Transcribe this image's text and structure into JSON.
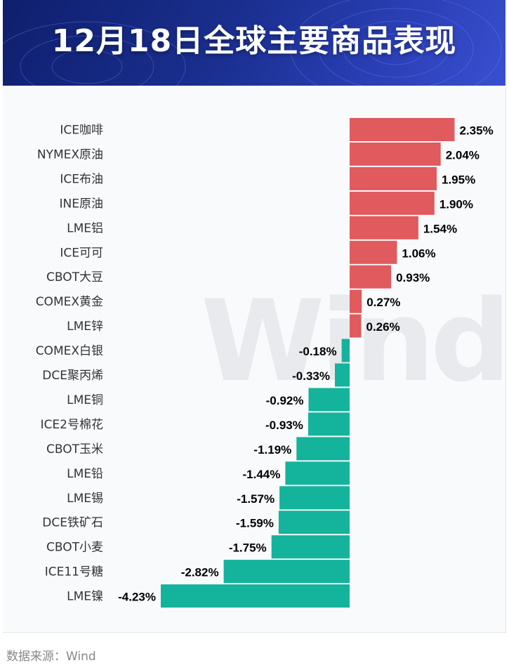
{
  "header": {
    "title": "12月18日全球主要商品表现"
  },
  "footer": {
    "source": "数据来源：Wind"
  },
  "watermark": "Wind",
  "colors": {
    "positive": "#e05a5e",
    "negative": "#14b39b",
    "banner": "#1a2f8f"
  },
  "chart_data": {
    "type": "bar",
    "orientation": "horizontal",
    "title": "12月18日全球主要商品表现",
    "unit": "%",
    "categories": [
      "ICE咖啡",
      "NYMEX原油",
      "ICE布油",
      "INE原油",
      "LME铝",
      "ICE可可",
      "CBOT大豆",
      "COMEX黄金",
      "LME锌",
      "COMEX白银",
      "DCE聚丙烯",
      "LME铜",
      "ICE2号棉花",
      "CBOT玉米",
      "LME铅",
      "LME锡",
      "DCE铁矿石",
      "CBOT小麦",
      "ICE11号糖",
      "LME镍"
    ],
    "values": [
      2.35,
      2.04,
      1.95,
      1.9,
      1.54,
      1.06,
      0.93,
      0.27,
      0.26,
      -0.18,
      -0.33,
      -0.92,
      -0.93,
      -1.19,
      -1.44,
      -1.57,
      -1.59,
      -1.75,
      -2.82,
      -4.23
    ],
    "labels": [
      "2.35%",
      "2.04%",
      "1.95%",
      "1.90%",
      "1.54%",
      "1.06%",
      "0.93%",
      "0.27%",
      "0.26%",
      "-0.18%",
      "-0.33%",
      "-0.92%",
      "-0.93%",
      "-1.19%",
      "-1.44%",
      "-1.57%",
      "-1.59%",
      "-1.75%",
      "-2.82%",
      "-4.23%"
    ]
  }
}
